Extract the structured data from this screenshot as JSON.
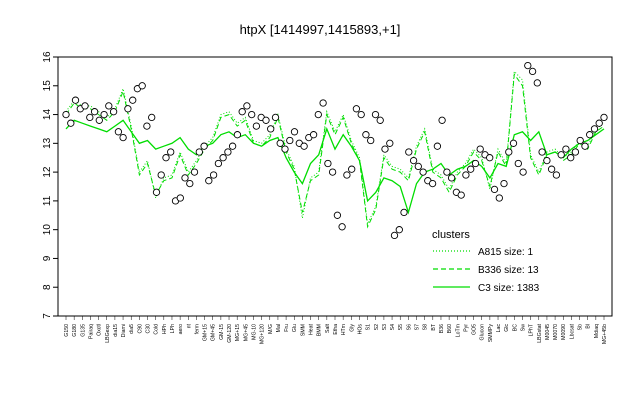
{
  "chart_data": {
    "type": "line",
    "title": "htpX [1414997,1415893,+1]",
    "xlabel": "",
    "ylabel": "",
    "ylim": [
      7,
      16
    ],
    "yticks": [
      7,
      8,
      9,
      10,
      11,
      12,
      13,
      14,
      15,
      16
    ],
    "grid": false,
    "legend_placement": "bottom-right",
    "legend_title": "clusters",
    "categories": [
      "G150",
      "G180",
      "G135",
      "Pairaq",
      "Oxctl",
      "LBGexp",
      "dia15",
      "Diami",
      "dia5",
      "C90",
      "C30",
      "Cold",
      "HPh",
      "LPh",
      "aero",
      "nt",
      "ferm",
      "GM+15",
      "GM+45",
      "GM-15",
      "GM-120",
      "MG+15",
      "MG+45",
      "MG-10",
      "MG+120",
      "M/G",
      "Mal",
      "Fru",
      "Glu",
      "SMM",
      "Heat",
      "BMM",
      "Salt",
      "Etha",
      "HTm",
      "Gly",
      "HOs",
      "S1",
      "S2",
      "S3",
      "S4",
      "S5",
      "S6",
      "S7",
      "S8",
      "BT",
      "B36",
      "B60",
      "LoTm",
      "Pyr",
      "GO5",
      "Glucon",
      "SMMPy",
      "Lac",
      "Glc",
      "BC",
      "Sw",
      "LPhT",
      "LBGstat",
      "M0045",
      "M0070",
      "M0090",
      "Lbcsat",
      "Sb",
      "Bl",
      "Mdiaq",
      "MG+45b"
    ],
    "series": [
      {
        "name": "A815 size: 1",
        "style": "dotted",
        "values": [
          14.1,
          14.5,
          14.3,
          14.3,
          14.1,
          13.9,
          14.2,
          14.9,
          13.6,
          12.0,
          12.4,
          11.1,
          11.8,
          11.9,
          12.7,
          12.0,
          12.4,
          12.9,
          13.2,
          14.0,
          14.1,
          13.7,
          13.9,
          13.1,
          13.0,
          13.3,
          14.0,
          12.8,
          12.2,
          10.4,
          11.8,
          12.0,
          14.1,
          13.4,
          14.0,
          13.1,
          12.5,
          10.2,
          10.8,
          12.6,
          12.2,
          12.1,
          11.8,
          12.9,
          13.5,
          12.1,
          11.9,
          11.4,
          12.0,
          12.3,
          12.8,
          12.5,
          11.4,
          12.8,
          12.3,
          15.5,
          15.2,
          12.6,
          12.0,
          12.7,
          12.8,
          12.5,
          12.7,
          13.1,
          12.9,
          13.5,
          13.7
        ]
      },
      {
        "name": "B336 size: 13",
        "style": "dashed",
        "values": [
          14.0,
          14.4,
          14.2,
          14.2,
          14.0,
          13.8,
          14.1,
          14.8,
          13.5,
          11.9,
          12.3,
          11.2,
          11.7,
          11.8,
          12.6,
          11.9,
          12.3,
          12.8,
          13.1,
          13.9,
          14.0,
          13.6,
          13.8,
          13.0,
          12.9,
          13.2,
          13.9,
          12.7,
          12.1,
          10.6,
          11.7,
          11.9,
          14.0,
          13.3,
          13.9,
          13.0,
          12.4,
          10.1,
          10.7,
          12.5,
          12.1,
          12.0,
          11.7,
          12.8,
          13.4,
          12.0,
          11.8,
          11.3,
          11.9,
          12.2,
          12.7,
          12.4,
          11.5,
          12.7,
          12.2,
          15.4,
          15.0,
          12.5,
          11.9,
          12.6,
          12.7,
          12.4,
          12.6,
          13.0,
          12.8,
          13.4,
          13.6
        ]
      },
      {
        "name": "C3 size: 1383",
        "style": "solid",
        "values": [
          13.5,
          13.8,
          13.7,
          13.6,
          13.5,
          13.4,
          13.6,
          13.8,
          13.4,
          13.0,
          13.1,
          12.8,
          12.9,
          13.0,
          13.2,
          12.8,
          12.6,
          12.9,
          13.0,
          13.3,
          13.4,
          13.2,
          13.3,
          13.0,
          12.9,
          13.1,
          13.2,
          12.5,
          12.0,
          11.6,
          12.3,
          12.6,
          13.5,
          12.8,
          13.3,
          12.9,
          12.4,
          11.0,
          11.3,
          11.8,
          11.7,
          11.5,
          10.6,
          11.6,
          12.0,
          12.1,
          12.3,
          11.9,
          12.1,
          12.2,
          12.4,
          12.2,
          11.8,
          12.3,
          12.2,
          13.3,
          13.4,
          13.1,
          13.4,
          12.6,
          12.7,
          12.5,
          12.8,
          13.0,
          13.1,
          13.3,
          13.5
        ]
      }
    ],
    "points": [
      14.0,
      13.7,
      14.5,
      14.2,
      14.3,
      13.9,
      14.1,
      13.8,
      14.0,
      14.3,
      14.1,
      13.4,
      13.2,
      14.2,
      14.5,
      14.9,
      15.0,
      13.6,
      13.9,
      11.3,
      11.9,
      12.5,
      12.7,
      11.0,
      11.1,
      11.8,
      11.6,
      12.0,
      12.7,
      12.9,
      11.7,
      11.9,
      12.3,
      12.5,
      12.7,
      12.9,
      13.3,
      14.1,
      14.3,
      14.0,
      13.6,
      13.9,
      13.8,
      13.5,
      13.9,
      13.0,
      12.8,
      13.1,
      13.4,
      13.0,
      12.9,
      13.2,
      13.3,
      14.0,
      14.4,
      12.3,
      12.0,
      10.5,
      10.1,
      11.9,
      12.1,
      14.2,
      14.0,
      13.3,
      13.1,
      14.0,
      13.8,
      12.8,
      13.0,
      9.8,
      10.0,
      10.6,
      12.7,
      12.4,
      12.2,
      12.0,
      11.7,
      11.6,
      12.9,
      13.8,
      12.0,
      11.8,
      11.3,
      11.2,
      11.9,
      12.1,
      12.3,
      12.8,
      12.6,
      12.5,
      11.4,
      11.1,
      11.6,
      12.7,
      13.0,
      12.3,
      12.0,
      15.7,
      15.5,
      15.1,
      12.7,
      12.4,
      12.1,
      11.9,
      12.6,
      12.8,
      12.5,
      12.7,
      13.1,
      12.9,
      13.3,
      13.5,
      13.7,
      13.9
    ],
    "colors": {
      "series_line": "#00dd00",
      "points": "#000000",
      "axis": "#000000"
    }
  }
}
